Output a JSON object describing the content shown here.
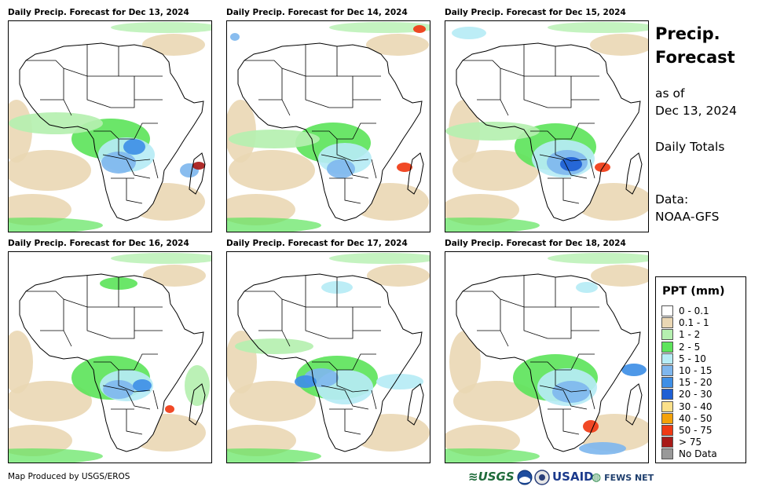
{
  "panels": [
    {
      "title": "Daily Precip. Forecast for Dec 13, 2024"
    },
    {
      "title": "Daily Precip. Forecast for Dec 14, 2024"
    },
    {
      "title": "Daily Precip. Forecast for Dec 15, 2024"
    },
    {
      "title": "Daily Precip. Forecast for Dec 16, 2024"
    },
    {
      "title": "Daily Precip. Forecast for Dec 17, 2024"
    },
    {
      "title": "Daily Precip. Forecast for Dec 18, 2024"
    }
  ],
  "side": {
    "title_line1": "Precip.",
    "title_line2": "Forecast",
    "asof_line1": "as of",
    "asof_line2": "Dec 13, 2024",
    "totals": "Daily Totals",
    "data_line1": "Data:",
    "data_line2": "NOAA-GFS"
  },
  "legend": {
    "title": "PPT (mm)",
    "items": [
      {
        "label": "0 - 0.1",
        "color": "#ffffff"
      },
      {
        "label": "0.1 - 1",
        "color": "#ead7b4"
      },
      {
        "label": "1 - 2",
        "color": "#b5f0b0"
      },
      {
        "label": "2 - 5",
        "color": "#5ee45c"
      },
      {
        "label": "5 - 10",
        "color": "#b6ecf5"
      },
      {
        "label": "10 - 15",
        "color": "#7fb7ee"
      },
      {
        "label": "15 - 20",
        "color": "#3f8fe6"
      },
      {
        "label": "20 - 30",
        "color": "#1e5fd4"
      },
      {
        "label": "30 - 40",
        "color": "#fbe08a"
      },
      {
        "label": "40 - 50",
        "color": "#f4a20a"
      },
      {
        "label": "50 - 75",
        "color": "#f03a14"
      },
      {
        "label": "> 75",
        "color": "#a81a18"
      },
      {
        "label": "No Data",
        "color": "#999999"
      }
    ]
  },
  "footer": {
    "credit": "Map Produced by USGS/EROS",
    "logo_usgs": "USGS",
    "logo_usaid": "USAID",
    "logo_fews": "FEWS NET"
  }
}
